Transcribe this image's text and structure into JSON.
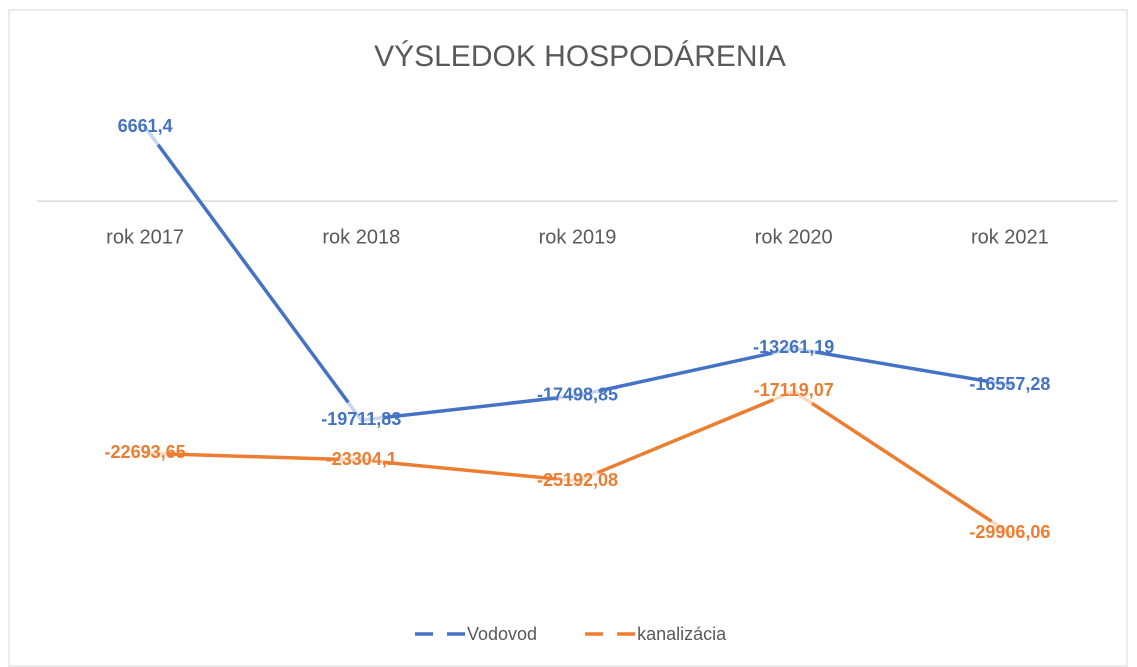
{
  "chart_data": {
    "type": "line",
    "title": "VÝSLEDOK HOSPODÁRENIA",
    "categories": [
      "rok 2017",
      "rok 2018",
      "rok 2019",
      "rok 2020",
      "rok 2021"
    ],
    "series": [
      {
        "name": "Vodovod",
        "color": "#4472c4",
        "values": [
          6661.4,
          -19711.83,
          -17498.85,
          -13261.19,
          -16557.28
        ],
        "value_labels": [
          "6661,4",
          "-19711,83",
          "-17498,85",
          "-13261,19",
          "-16557,28"
        ]
      },
      {
        "name": "kanalizácia",
        "color": "#ed7d31",
        "values": [
          -22693.65,
          -23304.1,
          -25192.08,
          -17119.07,
          -29906.06
        ],
        "value_labels": [
          "-22693,65",
          "-23304,1",
          "-25192,08",
          "-17119,07",
          "-29906,06"
        ]
      }
    ],
    "ylim": [
      -35000,
      10000
    ]
  }
}
